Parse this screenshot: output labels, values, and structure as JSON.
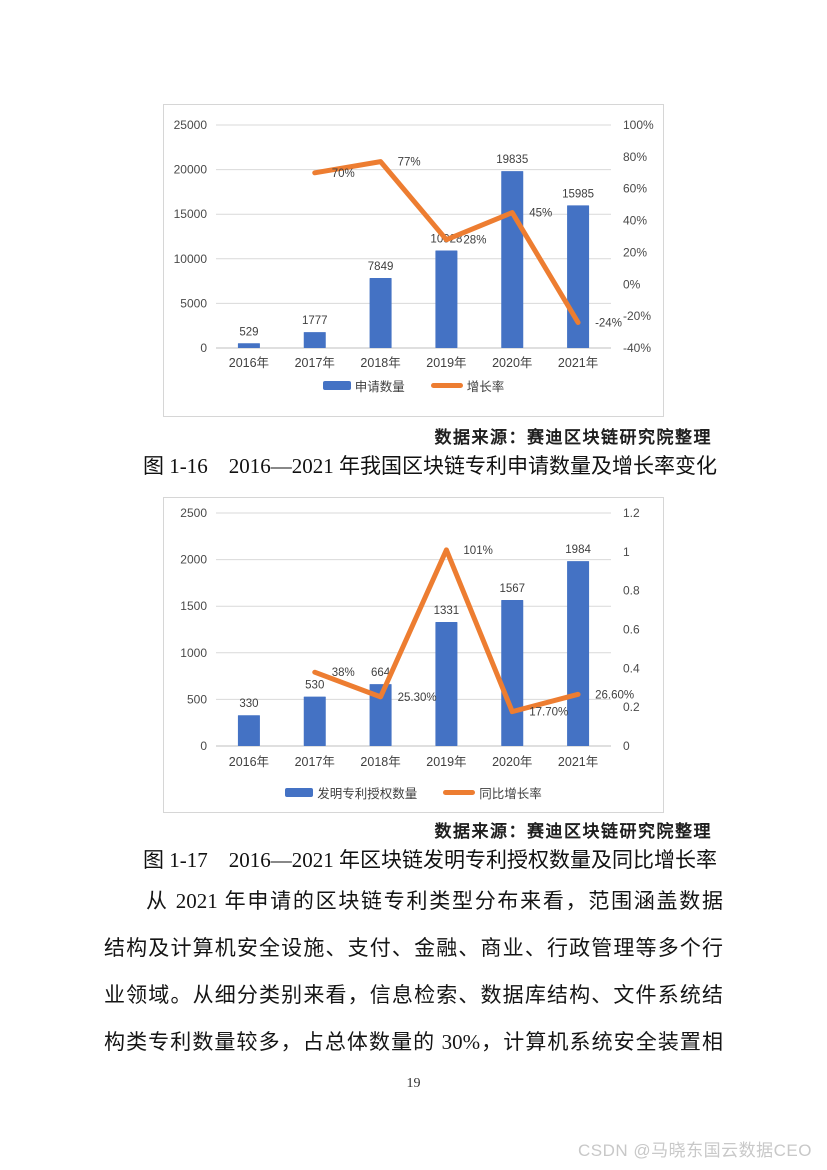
{
  "page": {
    "number": "19",
    "watermark": "CSDN @马晓东国云数据CEO"
  },
  "figures": [
    {
      "source_note": "数据来源：赛迪区块链研究院整理",
      "caption": "图 1-16　2016—2021 年我国区块链专利申请数量及增长率变化"
    },
    {
      "source_note": "数据来源：赛迪区块链研究院整理",
      "caption": "图 1-17　2016—2021 年区块链发明专利授权数量及同比增长率"
    }
  ],
  "paragraph": "从 2021 年申请的区块链专利类型分布来看，范围涵盖数据\n结构及计算机安全设施、支付、金融、商业、行政管理等多个行\n业领域。从细分类别来看，信息检索、数据库结构、文件系统结\n构类专利数量较多，占总体数量的 30%，计算机系统安全装置相",
  "chart_data": [
    {
      "type": "bar+line",
      "title": "",
      "categories": [
        "2016年",
        "2017年",
        "2018年",
        "2019年",
        "2020年",
        "2021年"
      ],
      "series": [
        {
          "name": "申请数量",
          "type": "bar",
          "axis": "left",
          "color": "#4472C4",
          "values": [
            529,
            1777,
            7849,
            10928,
            19835,
            15985
          ],
          "labels": [
            "529",
            "1777",
            "7849",
            "10928",
            "19835",
            "15985"
          ]
        },
        {
          "name": "增长率",
          "type": "line",
          "axis": "right",
          "color": "#ED7D31",
          "values": [
            null,
            70,
            77,
            28,
            45,
            -24
          ],
          "labels": [
            "",
            "70%",
            "77%",
            "28%",
            "45%",
            "-24%"
          ]
        }
      ],
      "left_axis": {
        "min": 0,
        "max": 25000,
        "ticks": [
          "0",
          "5000",
          "10000",
          "15000",
          "20000",
          "25000"
        ]
      },
      "right_axis": {
        "min": -40,
        "max": 100,
        "ticks": [
          "-40%",
          "-20%",
          "0%",
          "20%",
          "40%",
          "60%",
          "80%",
          "100%"
        ]
      },
      "grid": true,
      "legend_position": "bottom"
    },
    {
      "type": "bar+line",
      "title": "",
      "categories": [
        "2016年",
        "2017年",
        "2018年",
        "2019年",
        "2020年",
        "2021年"
      ],
      "series": [
        {
          "name": "发明专利授权数量",
          "type": "bar",
          "axis": "left",
          "color": "#4472C4",
          "values": [
            330,
            530,
            664,
            1331,
            1567,
            1984
          ],
          "labels": [
            "330",
            "530",
            "664",
            "1331",
            "1567",
            "1984"
          ]
        },
        {
          "name": "同比增长率",
          "type": "line",
          "axis": "right",
          "color": "#ED7D31",
          "values": [
            null,
            0.38,
            0.253,
            1.01,
            0.177,
            0.266
          ],
          "labels": [
            "",
            "38%",
            "25.30%",
            "101%",
            "17.70%",
            "26.60%"
          ]
        }
      ],
      "left_axis": {
        "min": 0,
        "max": 2500,
        "ticks": [
          "0",
          "500",
          "1000",
          "1500",
          "2000",
          "2500"
        ]
      },
      "right_axis": {
        "min": 0,
        "max": 1.2,
        "ticks": [
          "0",
          "0.2",
          "0.4",
          "0.6",
          "0.8",
          "1",
          "1.2"
        ]
      },
      "grid": true,
      "legend_position": "bottom"
    }
  ],
  "colors": {
    "bar": "#4472C4",
    "line": "#ED7D31",
    "grid": "#d9d9d9",
    "axis_line": "#bfbfbf",
    "tick_text": "#4a4a4a",
    "data_label": "#3f3f3f"
  }
}
